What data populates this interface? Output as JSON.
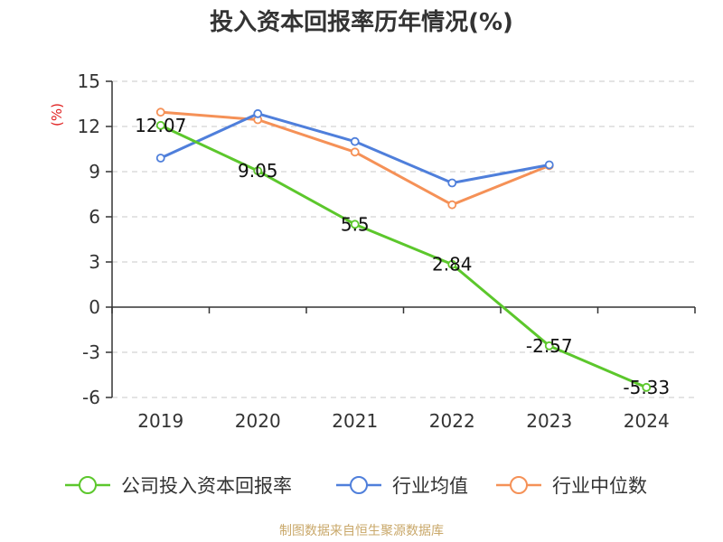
{
  "chart_data": {
    "type": "line",
    "title": "投入资本回报率历年情况(%)",
    "unit_label": "(%)",
    "categories": [
      "2019",
      "2020",
      "2021",
      "2022",
      "2023",
      "2024"
    ],
    "ylim": [
      -6,
      15
    ],
    "yticks": [
      15,
      12,
      9,
      6,
      3,
      0,
      -3,
      -6
    ],
    "grid": true,
    "legend_position": "bottom",
    "series": [
      {
        "name": "公司投入资本回报率",
        "color": "#5cc72c",
        "values": [
          12.07,
          9.05,
          5.5,
          2.84,
          -2.57,
          -5.33
        ],
        "labels": [
          "12.07",
          "9.05",
          "5.5",
          "2.84",
          "-2.57",
          "-5.33"
        ]
      },
      {
        "name": "行业均值",
        "color": "#4f7fdb",
        "values": [
          9.9,
          12.85,
          11.0,
          8.25,
          9.45,
          null
        ]
      },
      {
        "name": "行业中位数",
        "color": "#f59157",
        "values": [
          12.95,
          12.45,
          10.3,
          6.8,
          9.4,
          null
        ]
      }
    ]
  },
  "source_text": "制图数据来自恒生聚源数据库"
}
